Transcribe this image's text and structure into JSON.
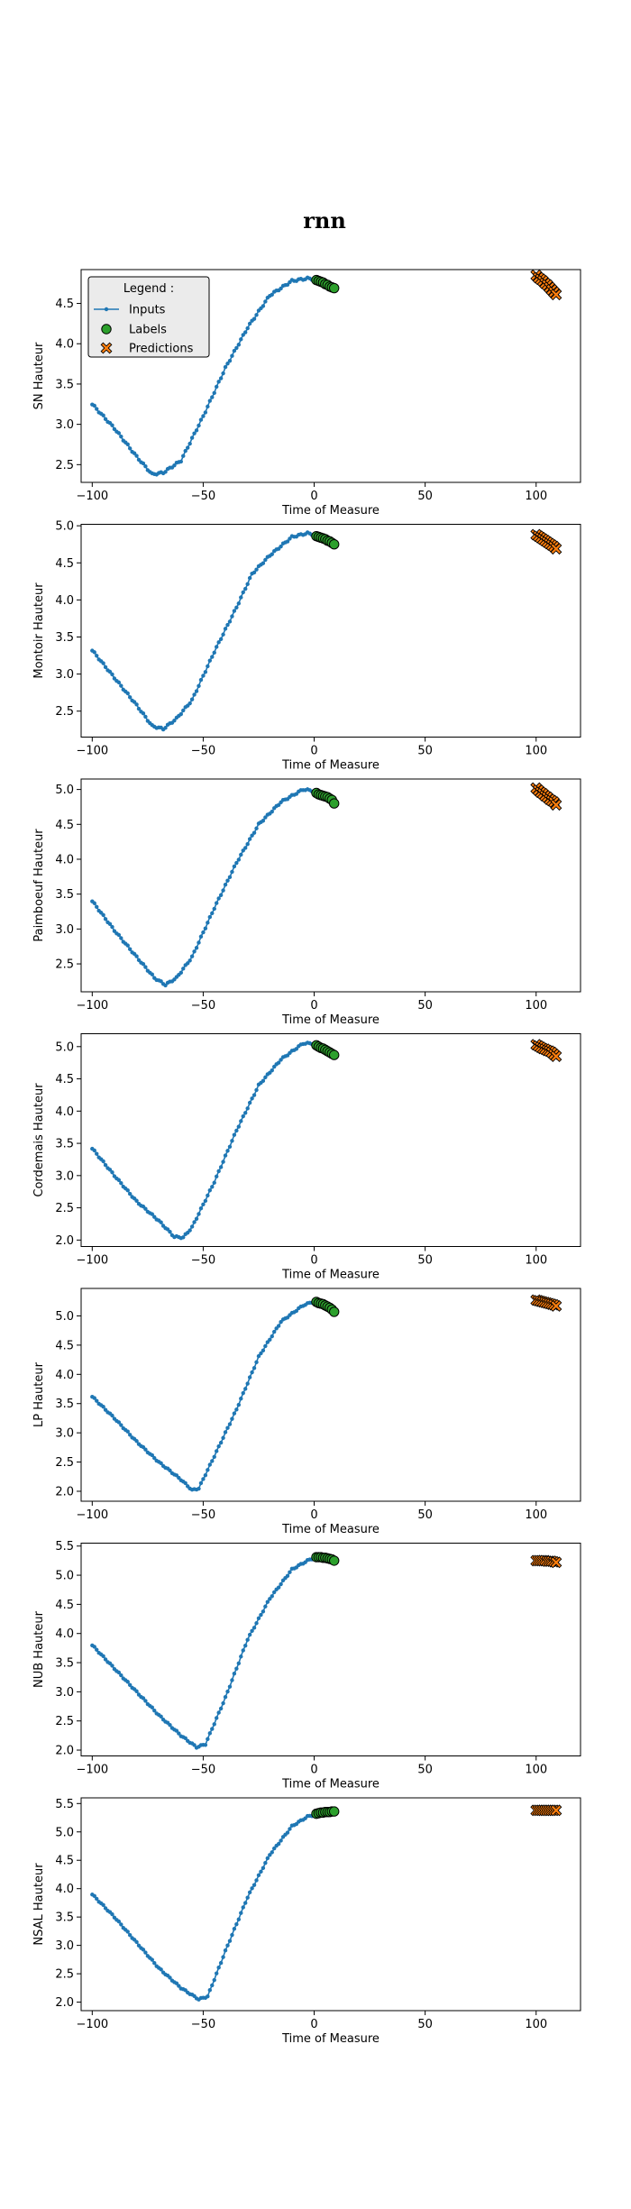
{
  "figure": {
    "title": "rnn"
  },
  "legend": {
    "title": "Legend :",
    "placement": "upper-left (first panel)",
    "entries": [
      "Inputs",
      "Labels",
      "Predictions"
    ]
  },
  "colors": {
    "inputs": "#1f77b4",
    "labels": "#2ca02c",
    "predictions": "#ff7f0e",
    "marker_edge": "#000000"
  },
  "chart_data": [
    {
      "type": "line",
      "xlabel": "Time of Measure",
      "ylabel": "SN Hauteur",
      "xlim": [
        -105,
        120
      ],
      "ylim": [
        2.28,
        4.92
      ],
      "xticks": [
        "-100",
        "-50",
        "0",
        "50",
        "100"
      ],
      "yticks": [
        "2.5",
        "3.0",
        "3.5",
        "4.0",
        "4.5"
      ],
      "ytick_values": [
        2.5,
        3.0,
        3.5,
        4.0,
        4.5
      ],
      "inputs_keypoints": [
        [
          -100,
          3.25
        ],
        [
          -90,
          2.95
        ],
        [
          -80,
          2.6
        ],
        [
          -73,
          2.38
        ],
        [
          -68,
          2.4
        ],
        [
          -60,
          2.55
        ],
        [
          -50,
          3.1
        ],
        [
          -40,
          3.7
        ],
        [
          -30,
          4.2
        ],
        [
          -20,
          4.6
        ],
        [
          -10,
          4.78
        ],
        [
          -3,
          4.81
        ],
        [
          0,
          4.8
        ]
      ],
      "labels": [
        [
          1,
          4.79
        ],
        [
          2,
          4.78
        ],
        [
          3,
          4.77
        ],
        [
          4,
          4.76
        ],
        [
          5,
          4.74
        ],
        [
          6,
          4.73
        ],
        [
          7,
          4.71
        ],
        [
          8,
          4.7
        ],
        [
          9,
          4.69
        ]
      ],
      "predictions": [
        [
          100,
          4.85
        ],
        [
          101,
          4.82
        ],
        [
          102,
          4.8
        ],
        [
          103,
          4.78
        ],
        [
          104,
          4.75
        ],
        [
          105,
          4.73
        ],
        [
          106,
          4.7
        ],
        [
          107,
          4.67
        ],
        [
          108,
          4.64
        ],
        [
          109,
          4.61
        ]
      ]
    },
    {
      "type": "line",
      "xlabel": "Time of Measure",
      "ylabel": "Montoir Hauteur",
      "xlim": [
        -105,
        120
      ],
      "ylim": [
        2.15,
        5.02
      ],
      "xticks": [
        "-100",
        "-50",
        "0",
        "50",
        "100"
      ],
      "yticks": [
        "2.5",
        "3.0",
        "3.5",
        "4.0",
        "4.5",
        "5.0"
      ],
      "ytick_values": [
        2.5,
        3.0,
        3.5,
        4.0,
        4.5,
        5.0
      ],
      "inputs_keypoints": [
        [
          -100,
          3.32
        ],
        [
          -90,
          2.95
        ],
        [
          -80,
          2.58
        ],
        [
          -73,
          2.3
        ],
        [
          -68,
          2.26
        ],
        [
          -62,
          2.4
        ],
        [
          -55,
          2.65
        ],
        [
          -45,
          3.3
        ],
        [
          -35,
          3.9
        ],
        [
          -28,
          4.35
        ],
        [
          -20,
          4.6
        ],
        [
          -10,
          4.85
        ],
        [
          -3,
          4.9
        ],
        [
          0,
          4.88
        ]
      ],
      "labels": [
        [
          1,
          4.86
        ],
        [
          2,
          4.85
        ],
        [
          3,
          4.84
        ],
        [
          4,
          4.83
        ],
        [
          5,
          4.82
        ],
        [
          6,
          4.8
        ],
        [
          7,
          4.79
        ],
        [
          8,
          4.77
        ],
        [
          9,
          4.75
        ]
      ],
      "predictions": [
        [
          100,
          4.88
        ],
        [
          101,
          4.86
        ],
        [
          102,
          4.84
        ],
        [
          103,
          4.82
        ],
        [
          104,
          4.8
        ],
        [
          105,
          4.78
        ],
        [
          106,
          4.76
        ],
        [
          107,
          4.74
        ],
        [
          108,
          4.72
        ],
        [
          109,
          4.69
        ]
      ]
    },
    {
      "type": "line",
      "xlabel": "Time of Measure",
      "ylabel": "Paimboeuf Hauteur",
      "xlim": [
        -105,
        120
      ],
      "ylim": [
        2.1,
        5.15
      ],
      "xticks": [
        "-100",
        "-50",
        "0",
        "50",
        "100"
      ],
      "yticks": [
        "2.5",
        "3.0",
        "3.5",
        "4.0",
        "4.5",
        "5.0"
      ],
      "ytick_values": [
        2.5,
        3.0,
        3.5,
        4.0,
        4.5,
        5.0
      ],
      "inputs_keypoints": [
        [
          -100,
          3.4
        ],
        [
          -90,
          2.98
        ],
        [
          -80,
          2.6
        ],
        [
          -72,
          2.3
        ],
        [
          -67,
          2.2
        ],
        [
          -62,
          2.3
        ],
        [
          -55,
          2.6
        ],
        [
          -45,
          3.3
        ],
        [
          -35,
          3.95
        ],
        [
          -25,
          4.5
        ],
        [
          -15,
          4.82
        ],
        [
          -5,
          5.0
        ],
        [
          0,
          4.98
        ]
      ],
      "labels": [
        [
          1,
          4.95
        ],
        [
          2,
          4.93
        ],
        [
          3,
          4.92
        ],
        [
          4,
          4.91
        ],
        [
          5,
          4.9
        ],
        [
          6,
          4.89
        ],
        [
          7,
          4.87
        ],
        [
          8,
          4.85
        ],
        [
          9,
          4.8
        ]
      ],
      "predictions": [
        [
          100,
          5.02
        ],
        [
          101,
          4.99
        ],
        [
          102,
          4.96
        ],
        [
          103,
          4.94
        ],
        [
          104,
          4.91
        ],
        [
          105,
          4.89
        ],
        [
          106,
          4.86
        ],
        [
          107,
          4.84
        ],
        [
          108,
          4.82
        ],
        [
          109,
          4.78
        ]
      ]
    },
    {
      "type": "line",
      "xlabel": "Time of Measure",
      "ylabel": "Cordemais Hauteur",
      "xlim": [
        -105,
        120
      ],
      "ylim": [
        1.9,
        5.2
      ],
      "xticks": [
        "-100",
        "-50",
        "0",
        "50",
        "100"
      ],
      "yticks": [
        "2.0",
        "2.5",
        "3.0",
        "3.5",
        "4.0",
        "4.5",
        "5.0"
      ],
      "ytick_values": [
        2.0,
        2.5,
        3.0,
        3.5,
        4.0,
        4.5,
        5.0
      ],
      "inputs_keypoints": [
        [
          -100,
          3.42
        ],
        [
          -90,
          3.0
        ],
        [
          -80,
          2.6
        ],
        [
          -70,
          2.3
        ],
        [
          -63,
          2.05
        ],
        [
          -59,
          2.04
        ],
        [
          -55,
          2.2
        ],
        [
          -45,
          2.9
        ],
        [
          -35,
          3.7
        ],
        [
          -25,
          4.4
        ],
        [
          -15,
          4.8
        ],
        [
          -5,
          5.05
        ],
        [
          0,
          5.05
        ]
      ],
      "labels": [
        [
          1,
          5.02
        ],
        [
          2,
          5.0
        ],
        [
          3,
          4.98
        ],
        [
          4,
          4.97
        ],
        [
          5,
          4.95
        ],
        [
          6,
          4.93
        ],
        [
          7,
          4.91
        ],
        [
          8,
          4.89
        ],
        [
          9,
          4.87
        ]
      ],
      "predictions": [
        [
          100,
          5.03
        ],
        [
          101,
          5.01
        ],
        [
          102,
          4.99
        ],
        [
          103,
          4.97
        ],
        [
          104,
          4.96
        ],
        [
          105,
          4.94
        ],
        [
          106,
          4.93
        ],
        [
          107,
          4.91
        ],
        [
          108,
          4.88
        ],
        [
          109,
          4.85
        ]
      ]
    },
    {
      "type": "line",
      "xlabel": "Time of Measure",
      "ylabel": "LP Hauteur",
      "xlim": [
        -105,
        120
      ],
      "ylim": [
        1.83,
        5.47
      ],
      "xticks": [
        "-100",
        "-50",
        "0",
        "50",
        "100"
      ],
      "yticks": [
        "2.0",
        "2.5",
        "3.0",
        "3.5",
        "4.0",
        "4.5",
        "5.0"
      ],
      "ytick_values": [
        2.0,
        2.5,
        3.0,
        3.5,
        4.0,
        4.5,
        5.0
      ],
      "inputs_keypoints": [
        [
          -100,
          3.62
        ],
        [
          -90,
          3.25
        ],
        [
          -80,
          2.85
        ],
        [
          -70,
          2.5
        ],
        [
          -60,
          2.2
        ],
        [
          -55,
          2.02
        ],
        [
          -52,
          2.05
        ],
        [
          -45,
          2.6
        ],
        [
          -35,
          3.4
        ],
        [
          -25,
          4.3
        ],
        [
          -15,
          4.9
        ],
        [
          -5,
          5.18
        ],
        [
          0,
          5.25
        ]
      ],
      "labels": [
        [
          1,
          5.24
        ],
        [
          2,
          5.22
        ],
        [
          3,
          5.21
        ],
        [
          4,
          5.2
        ],
        [
          5,
          5.18
        ],
        [
          6,
          5.16
        ],
        [
          7,
          5.14
        ],
        [
          8,
          5.11
        ],
        [
          9,
          5.07
        ]
      ],
      "predictions": [
        [
          100,
          5.27
        ],
        [
          101,
          5.26
        ],
        [
          102,
          5.25
        ],
        [
          103,
          5.24
        ],
        [
          104,
          5.23
        ],
        [
          105,
          5.22
        ],
        [
          106,
          5.21
        ],
        [
          107,
          5.2
        ],
        [
          108,
          5.19
        ],
        [
          109,
          5.17
        ]
      ]
    },
    {
      "type": "line",
      "xlabel": "Time of Measure",
      "ylabel": "NUB Hauteur",
      "xlim": [
        -105,
        120
      ],
      "ylim": [
        1.9,
        5.55
      ],
      "xticks": [
        "-100",
        "-50",
        "0",
        "50",
        "100"
      ],
      "yticks": [
        "2.0",
        "2.5",
        "3.0",
        "3.5",
        "4.0",
        "4.5",
        "5.0",
        "5.5"
      ],
      "ytick_values": [
        2.0,
        2.5,
        3.0,
        3.5,
        4.0,
        4.5,
        5.0,
        5.5
      ],
      "inputs_keypoints": [
        [
          -100,
          3.8
        ],
        [
          -90,
          3.4
        ],
        [
          -80,
          3.0
        ],
        [
          -70,
          2.6
        ],
        [
          -60,
          2.25
        ],
        [
          -53,
          2.05
        ],
        [
          -49,
          2.1
        ],
        [
          -40,
          2.9
        ],
        [
          -30,
          3.9
        ],
        [
          -20,
          4.6
        ],
        [
          -10,
          5.1
        ],
        [
          -3,
          5.25
        ],
        [
          0,
          5.3
        ]
      ],
      "labels": [
        [
          1,
          5.31
        ],
        [
          2,
          5.31
        ],
        [
          3,
          5.31
        ],
        [
          4,
          5.3
        ],
        [
          5,
          5.3
        ],
        [
          6,
          5.29
        ],
        [
          7,
          5.28
        ],
        [
          8,
          5.27
        ],
        [
          9,
          5.25
        ]
      ],
      "predictions": [
        [
          100,
          5.25
        ],
        [
          101,
          5.25
        ],
        [
          102,
          5.25
        ],
        [
          103,
          5.25
        ],
        [
          104,
          5.25
        ],
        [
          105,
          5.24
        ],
        [
          106,
          5.24
        ],
        [
          107,
          5.24
        ],
        [
          108,
          5.23
        ],
        [
          109,
          5.22
        ]
      ]
    },
    {
      "type": "line",
      "xlabel": "Time of Measure",
      "ylabel": "NSAL Hauteur",
      "xlim": [
        -105,
        120
      ],
      "ylim": [
        1.85,
        5.6
      ],
      "xticks": [
        "-100",
        "-50",
        "0",
        "50",
        "100"
      ],
      "yticks": [
        "2.0",
        "2.5",
        "3.0",
        "3.5",
        "4.0",
        "4.5",
        "5.0",
        "5.5"
      ],
      "ytick_values": [
        2.0,
        2.5,
        3.0,
        3.5,
        4.0,
        4.5,
        5.0,
        5.5
      ],
      "inputs_keypoints": [
        [
          -100,
          3.9
        ],
        [
          -90,
          3.5
        ],
        [
          -80,
          3.05
        ],
        [
          -70,
          2.6
        ],
        [
          -60,
          2.25
        ],
        [
          -52,
          2.05
        ],
        [
          -48,
          2.1
        ],
        [
          -40,
          2.9
        ],
        [
          -30,
          3.85
        ],
        [
          -20,
          4.6
        ],
        [
          -10,
          5.1
        ],
        [
          -3,
          5.27
        ],
        [
          0,
          5.3
        ]
      ],
      "labels": [
        [
          1,
          5.32
        ],
        [
          2,
          5.33
        ],
        [
          3,
          5.34
        ],
        [
          4,
          5.34
        ],
        [
          5,
          5.35
        ],
        [
          6,
          5.35
        ],
        [
          7,
          5.35
        ],
        [
          8,
          5.36
        ],
        [
          9,
          5.36
        ]
      ],
      "predictions": [
        [
          100,
          5.38
        ],
        [
          101,
          5.38
        ],
        [
          102,
          5.38
        ],
        [
          103,
          5.38
        ],
        [
          104,
          5.38
        ],
        [
          105,
          5.38
        ],
        [
          106,
          5.38
        ],
        [
          107,
          5.38
        ],
        [
          108,
          5.38
        ],
        [
          109,
          5.38
        ]
      ]
    }
  ]
}
